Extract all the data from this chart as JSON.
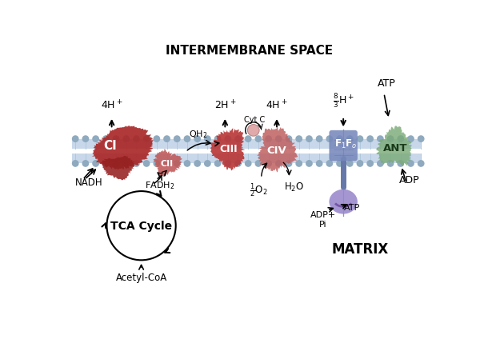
{
  "bg_color": "#ffffff",
  "membrane_color_stripe": "#c8d8ea",
  "membrane_dot_color": "#8faabf",
  "ci_color": "#aa2828",
  "cii_color": "#c05858",
  "ciii_color": "#b83535",
  "civ_color": "#c06060",
  "f1fo_top_color": "#7788bb",
  "f1fo_stalk_color": "#6677aa",
  "f1fo_bottom_color": "#9988cc",
  "ant_color": "#7aaa77",
  "labels": {
    "intermembrane": "INTERMEMBRANE SPACE",
    "matrix": "MATRIX",
    "4hp_left": "4H$^+$",
    "2hp": "2H$^+$",
    "4hp_right": "4H$^+$",
    "nadh": "NADH",
    "fadh2": "FADH$_2$",
    "qh2": "QH$_2$",
    "cytc": "Cyt C",
    "half_o2": "$\\frac{1}{2}$O$_2$",
    "h2o": "H$_2$O",
    "adp_pi": "ADP+\nPi",
    "atp_bottom": "ATP",
    "atp_top": "ATP",
    "adp": "ADP",
    "acetylcoa": "Acetyl-CoA",
    "tca": "TCA Cycle",
    "ci": "CI",
    "cii": "CII",
    "ciii": "CIII",
    "civ": "CIV",
    "ant": "ANT"
  }
}
